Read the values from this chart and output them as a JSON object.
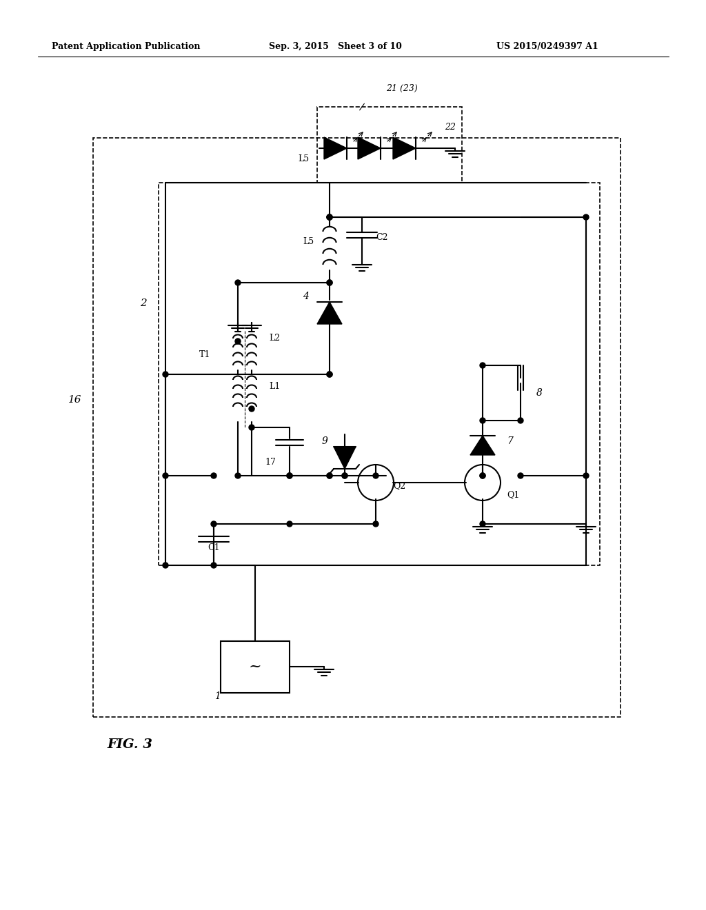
{
  "bg_color": "#ffffff",
  "header_left": "Patent Application Publication",
  "header_center": "Sep. 3, 2015   Sheet 3 of 10",
  "header_right": "US 2015/0249397 A1",
  "figure_label": "FIG. 3",
  "fig_width": 10.24,
  "fig_height": 13.2
}
